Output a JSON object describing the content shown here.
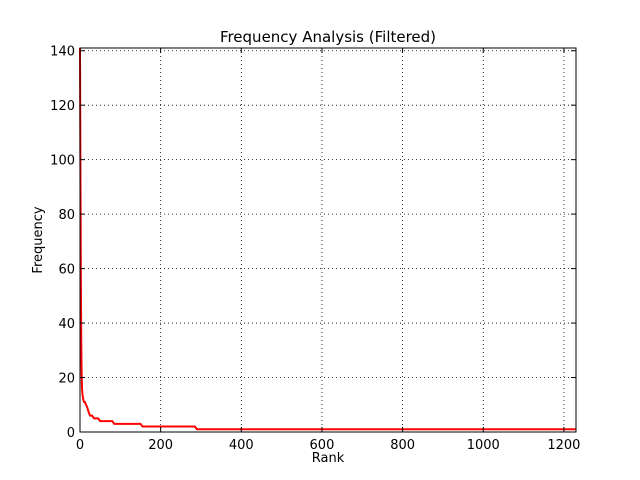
{
  "chart_data": {
    "type": "line",
    "title": "Frequency Analysis (Filtered)",
    "xlabel": "Rank",
    "ylabel": "Frequency",
    "xlim": [
      0,
      1230
    ],
    "ylim": [
      0,
      141
    ],
    "xticks": [
      0,
      200,
      400,
      600,
      800,
      1000,
      1200
    ],
    "yticks": [
      0,
      20,
      40,
      60,
      80,
      100,
      120,
      140
    ],
    "grid": true,
    "grid_style": "dotted",
    "line_color": "#ff0000",
    "series": [
      {
        "x": [
          0,
          1,
          2,
          3,
          4,
          5,
          6,
          7,
          8,
          10,
          12,
          15,
          18,
          22,
          25,
          30,
          35,
          40,
          45,
          50,
          55,
          60,
          70,
          80,
          85,
          90,
          100,
          120,
          150,
          155,
          200,
          250,
          285,
          290,
          400,
          600,
          800,
          1000,
          1200,
          1230
        ],
        "y": [
          141,
          100,
          60,
          35,
          22,
          16,
          14,
          13,
          12,
          11,
          11,
          10,
          9,
          7,
          6,
          6,
          5,
          5,
          5,
          4,
          4,
          4,
          4,
          4,
          3,
          3,
          3,
          3,
          3,
          2,
          2,
          2,
          2,
          1,
          1,
          1,
          1,
          1,
          1,
          1
        ]
      }
    ]
  }
}
